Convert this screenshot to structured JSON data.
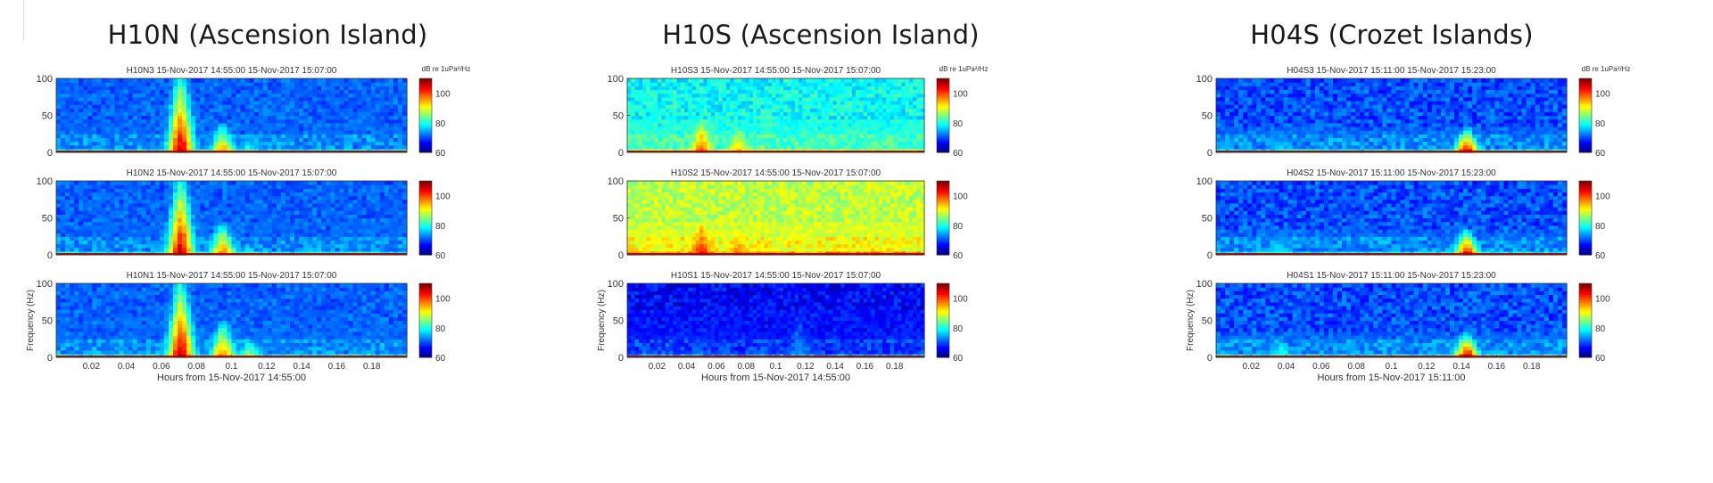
{
  "groups": [
    {
      "title": "H10N (Ascension Island)",
      "cbar_unit": "dB re 1uPa²/Hz",
      "xlabel": "Hours from 15-Nov-2017 14:55:00",
      "ylabel": "Frequency (Hz)",
      "panels": [
        {
          "title": "H10N3 15-Nov-2017 14:55:00 15-Nov-2017 15:07:00"
        },
        {
          "title": "H10N2 15-Nov-2017 14:55:00 15-Nov-2017 15:07:00"
        },
        {
          "title": "H10N1 15-Nov-2017 14:55:00 15-Nov-2017 15:07:00"
        }
      ]
    },
    {
      "title": "H10S (Ascension Island)",
      "cbar_unit": "dB re 1uPa²/Hz",
      "xlabel": "Hours from 15-Nov-2017 14:55:00",
      "ylabel": "Frequency (Hz)",
      "panels": [
        {
          "title": "H10S3 15-Nov-2017 14:55:00 15-Nov-2017 15:07:00"
        },
        {
          "title": "H10S2 15-Nov-2017 14:55:00 15-Nov-2017 15:07:00"
        },
        {
          "title": "H10S1 15-Nov-2017 14:55:00 15-Nov-2017 15:07:00"
        }
      ]
    },
    {
      "title": "H04S (Crozet Islands)",
      "cbar_unit": "dB re 1uPa²/Hz",
      "xlabel": "Hours from 15-Nov-2017 15:11:00",
      "ylabel": "Frequency (Hz)",
      "panels": [
        {
          "title": "H04S3 15-Nov-2017 15:11:00 15-Nov-2017 15:23:00"
        },
        {
          "title": "H04S2 15-Nov-2017 15:11:00 15-Nov-2017 15:23:00"
        },
        {
          "title": "H04S1 15-Nov-2017 15:11:00 15-Nov-2017 15:23:00"
        }
      ]
    }
  ],
  "chart_data": [
    {
      "type": "heatmap",
      "title": "H10N3 15-Nov-2017 14:55:00 15-Nov-2017 15:07:00",
      "xlabel": "",
      "ylabel": "",
      "xlim": [
        0,
        0.2
      ],
      "ylim": [
        0,
        100
      ],
      "colorbar": {
        "range": [
          60,
          110
        ],
        "ticks": [
          60,
          80,
          100
        ],
        "unit": "dB re 1uPa²/Hz"
      },
      "yticks": [
        0,
        50,
        100
      ],
      "xticks": [],
      "baseline_db": 70,
      "events": [
        {
          "t": 0.071,
          "fmax": 100,
          "db": 108
        },
        {
          "t": 0.095,
          "fmax": 35,
          "db": 98
        },
        {
          "t": 0.11,
          "fmax": 15,
          "db": 85
        }
      ]
    },
    {
      "type": "heatmap",
      "title": "H10N2 15-Nov-2017 14:55:00 15-Nov-2017 15:07:00",
      "xlabel": "",
      "ylabel": "",
      "xlim": [
        0,
        0.2
      ],
      "ylim": [
        0,
        100
      ],
      "colorbar": {
        "range": [
          60,
          110
        ],
        "ticks": [
          60,
          80,
          100
        ],
        "unit": ""
      },
      "yticks": [
        0,
        50,
        100
      ],
      "xticks": [],
      "baseline_db": 70,
      "events": [
        {
          "t": 0.071,
          "fmax": 100,
          "db": 108
        },
        {
          "t": 0.095,
          "fmax": 40,
          "db": 100
        },
        {
          "t": 0.11,
          "fmax": 10,
          "db": 84
        }
      ]
    },
    {
      "type": "heatmap",
      "title": "H10N1 15-Nov-2017 14:55:00 15-Nov-2017 15:07:00",
      "xlabel": "Hours from 15-Nov-2017 14:55:00",
      "ylabel": "Frequency (Hz)",
      "xlim": [
        0,
        0.2
      ],
      "ylim": [
        0,
        100
      ],
      "colorbar": {
        "range": [
          60,
          110
        ],
        "ticks": [
          60,
          80,
          100
        ],
        "unit": ""
      },
      "yticks": [
        0,
        50,
        100
      ],
      "xticks": [
        0.02,
        0.04,
        0.06,
        0.08,
        0.1,
        0.12,
        0.14,
        0.16,
        0.18
      ],
      "baseline_db": 70,
      "events": [
        {
          "t": 0.071,
          "fmax": 100,
          "db": 108
        },
        {
          "t": 0.095,
          "fmax": 45,
          "db": 100
        },
        {
          "t": 0.11,
          "fmax": 25,
          "db": 88
        }
      ]
    },
    {
      "type": "heatmap",
      "title": "H10S3 15-Nov-2017 14:55:00 15-Nov-2017 15:07:00",
      "xlabel": "",
      "ylabel": "",
      "xlim": [
        0,
        0.2
      ],
      "ylim": [
        0,
        100
      ],
      "colorbar": {
        "range": [
          60,
          110
        ],
        "ticks": [
          60,
          80,
          100
        ],
        "unit": "dB re 1uPa²/Hz"
      },
      "yticks": [
        0,
        50,
        100
      ],
      "xticks": [],
      "baseline_db": 79,
      "events": [
        {
          "t": 0.05,
          "fmax": 40,
          "db": 102
        },
        {
          "t": 0.075,
          "fmax": 30,
          "db": 96
        },
        {
          "t": 0.09,
          "fmax": 15,
          "db": 90
        }
      ]
    },
    {
      "type": "heatmap",
      "title": "H10S2 15-Nov-2017 14:55:00 15-Nov-2017 15:07:00",
      "xlabel": "",
      "ylabel": "",
      "xlim": [
        0,
        0.2
      ],
      "ylim": [
        0,
        100
      ],
      "colorbar": {
        "range": [
          60,
          110
        ],
        "ticks": [
          60,
          80,
          100
        ],
        "unit": ""
      },
      "yticks": [
        0,
        50,
        100
      ],
      "xticks": [],
      "baseline_db": 88,
      "events": [
        {
          "t": 0.05,
          "fmax": 40,
          "db": 104
        },
        {
          "t": 0.075,
          "fmax": 30,
          "db": 98
        }
      ]
    },
    {
      "type": "heatmap",
      "title": "H10S1 15-Nov-2017 14:55:00 15-Nov-2017 15:07:00",
      "xlabel": "Hours from 15-Nov-2017 14:55:00",
      "ylabel": "Frequency (Hz)",
      "xlim": [
        0,
        0.2
      ],
      "ylim": [
        0,
        100
      ],
      "colorbar": {
        "range": [
          60,
          110
        ],
        "ticks": [
          60,
          80,
          100
        ],
        "unit": ""
      },
      "yticks": [
        0,
        50,
        100
      ],
      "xticks": [
        0.02,
        0.04,
        0.06,
        0.08,
        0.1,
        0.12,
        0.14,
        0.16,
        0.18
      ],
      "baseline_db": 66,
      "events": [
        {
          "t": 0.05,
          "fmax": 30,
          "db": 72
        },
        {
          "t": 0.115,
          "fmax": 60,
          "db": 74
        }
      ]
    },
    {
      "type": "heatmap",
      "title": "H04S3 15-Nov-2017 15:11:00 15-Nov-2017 15:23:00",
      "xlabel": "",
      "ylabel": "",
      "xlim": [
        0,
        0.2
      ],
      "ylim": [
        0,
        100
      ],
      "colorbar": {
        "range": [
          60,
          110
        ],
        "ticks": [
          60,
          80,
          100
        ],
        "unit": "dB re 1uPa²/Hz"
      },
      "yticks": [
        0,
        50,
        100
      ],
      "xticks": [],
      "baseline_db": 70,
      "events": [
        {
          "t": 0.037,
          "fmax": 25,
          "db": 80
        },
        {
          "t": 0.143,
          "fmax": 30,
          "db": 108
        }
      ]
    },
    {
      "type": "heatmap",
      "title": "H04S2 15-Nov-2017 15:11:00 15-Nov-2017 15:23:00",
      "xlabel": "",
      "ylabel": "",
      "xlim": [
        0,
        0.2
      ],
      "ylim": [
        0,
        100
      ],
      "colorbar": {
        "range": [
          60,
          110
        ],
        "ticks": [
          60,
          80,
          100
        ],
        "unit": ""
      },
      "yticks": [
        0,
        50,
        100
      ],
      "xticks": [],
      "baseline_db": 70,
      "events": [
        {
          "t": 0.037,
          "fmax": 25,
          "db": 80
        },
        {
          "t": 0.143,
          "fmax": 30,
          "db": 108
        }
      ]
    },
    {
      "type": "heatmap",
      "title": "H04S1 15-Nov-2017 15:11:00 15-Nov-2017 15:23:00",
      "xlabel": "Hours from 15-Nov-2017 15:11:00",
      "ylabel": "Frequency (Hz)",
      "xlim": [
        0,
        0.2
      ],
      "ylim": [
        0,
        100
      ],
      "colorbar": {
        "range": [
          60,
          110
        ],
        "ticks": [
          60,
          80,
          100
        ],
        "unit": ""
      },
      "yticks": [
        0,
        50,
        100
      ],
      "xticks": [
        0.02,
        0.04,
        0.06,
        0.08,
        0.1,
        0.12,
        0.14,
        0.16,
        0.18
      ],
      "baseline_db": 70,
      "events": [
        {
          "t": 0.037,
          "fmax": 25,
          "db": 82
        },
        {
          "t": 0.143,
          "fmax": 30,
          "db": 108
        }
      ]
    }
  ]
}
